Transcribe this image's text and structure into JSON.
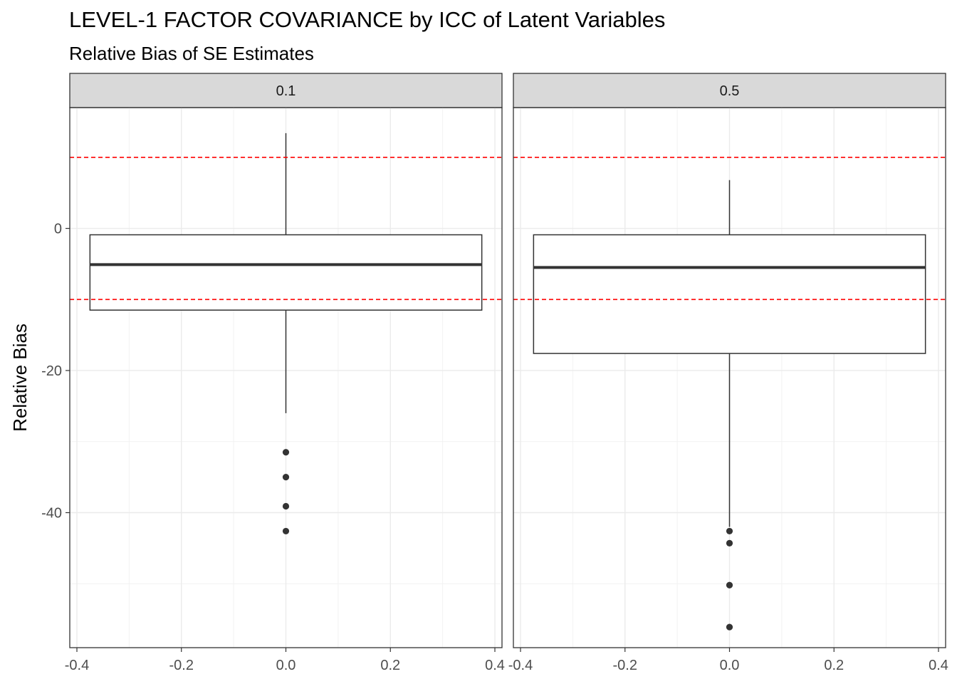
{
  "chart_data": {
    "type": "boxplot",
    "title": "LEVEL-1 FACTOR COVARIANCE by ICC of Latent Variables",
    "subtitle": "Relative Bias of SE Estimates",
    "xlabel": "",
    "ylabel": "Relative Bias",
    "xlim": [
      -0.4,
      0.4
    ],
    "ylim": [
      -59,
      17
    ],
    "x_ticks": [
      -0.4,
      -0.2,
      0.0,
      0.2,
      0.4
    ],
    "x_tick_labels": [
      "-0.4",
      "-0.2",
      "0.0",
      "0.2",
      "0.4"
    ],
    "y_ticks": [
      0,
      -20,
      -40
    ],
    "y_tick_labels": [
      "0",
      "-20",
      "-40"
    ],
    "grid": true,
    "reference_lines": [
      {
        "y": 10,
        "color": "#ff0000",
        "style": "dashed"
      },
      {
        "y": -10,
        "color": "#ff0000",
        "style": "dashed"
      }
    ],
    "colors": {
      "strip_fill": "#d9d9d9",
      "box_line": "#333333",
      "grid": "#ebebeb",
      "ref_line": "#ff0000"
    },
    "panels": [
      {
        "facet_label": "0.1",
        "x": 0.0,
        "box_halfwidth": 0.375,
        "whisker_low": -26.0,
        "q1": -11.5,
        "median": -5.1,
        "q3": -0.9,
        "whisker_high": 13.4,
        "outliers": [
          -31.5,
          -35.0,
          -39.1,
          -42.6
        ]
      },
      {
        "facet_label": "0.5",
        "x": 0.0,
        "box_halfwidth": 0.375,
        "whisker_low": -42.0,
        "q1": -17.6,
        "median": -5.5,
        "q3": -0.9,
        "whisker_high": 6.8,
        "outliers": [
          -42.6,
          -44.3,
          -50.2,
          -56.1
        ]
      }
    ]
  }
}
